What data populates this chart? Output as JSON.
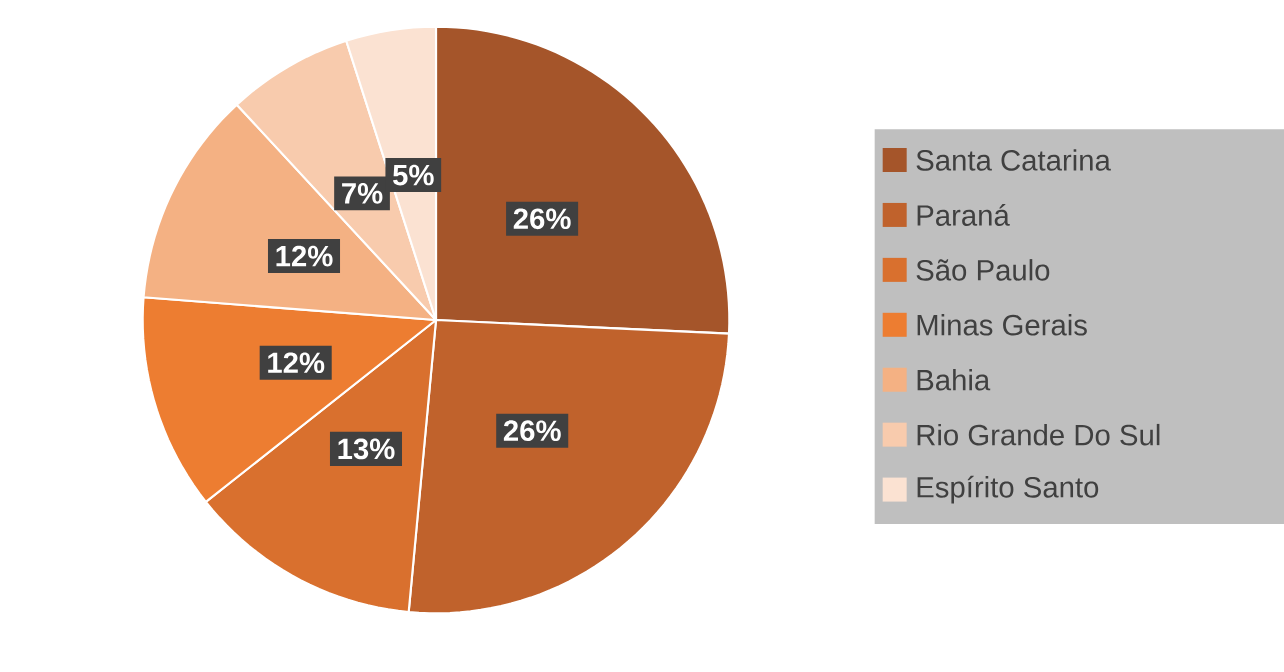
{
  "chart_data": {
    "type": "pie",
    "categories": [
      "Santa Catarina",
      "Paraná",
      "São Paulo",
      "Minas Gerais",
      "Bahia",
      "Rio Grande Do Sul",
      "Espírito Santo"
    ],
    "values": [
      26,
      26,
      13,
      12,
      12,
      7,
      5
    ],
    "colors": [
      "#a5552a",
      "#c0622c",
      "#d9702e",
      "#ed7d31",
      "#f4b183",
      "#f8cbad",
      "#fbe2d2"
    ],
    "value_labels": [
      "26%",
      "26%",
      "13%",
      "12%",
      "12%",
      "7%",
      "5%"
    ],
    "legend": "right"
  }
}
